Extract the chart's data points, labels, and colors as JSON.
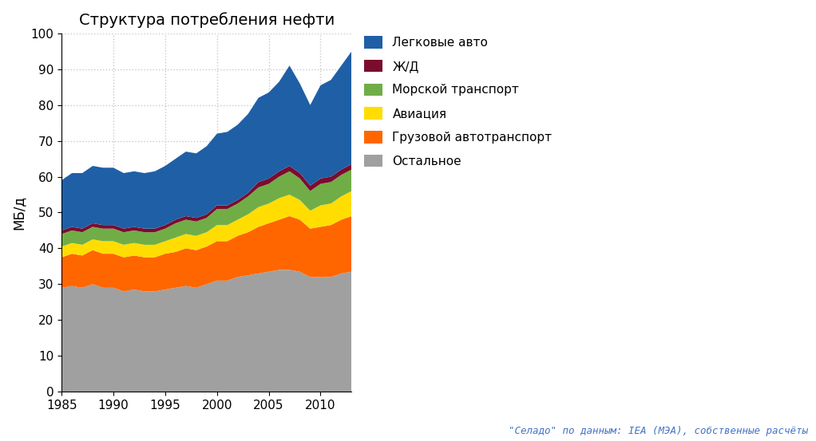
{
  "title": "Структура потребления нефти",
  "ylabel": "МБ/д",
  "source_text": "\"Селадо\" по данным: IEA (МЭА), собственные расчёты",
  "years": [
    1985,
    1986,
    1987,
    1988,
    1989,
    1990,
    1991,
    1992,
    1993,
    1994,
    1995,
    1996,
    1997,
    1998,
    1999,
    2000,
    2001,
    2002,
    2003,
    2004,
    2005,
    2006,
    2007,
    2008,
    2009,
    2010,
    2011,
    2012,
    2013
  ],
  "series": {
    "Остальное": [
      29,
      29.5,
      29,
      30,
      29,
      29,
      28,
      28.5,
      28,
      28,
      28.5,
      29,
      29.5,
      29,
      30,
      31,
      31,
      32,
      32.5,
      33,
      33.5,
      34,
      34,
      33.5,
      32,
      32,
      32,
      33,
      33.5
    ],
    "Грузовой автотранспорт": [
      8.5,
      9,
      9,
      9.5,
      9.5,
      9.5,
      9.5,
      9.5,
      9.5,
      9.5,
      10,
      10,
      10.5,
      10.5,
      10.5,
      11,
      11,
      11.5,
      12,
      13,
      13.5,
      14,
      15,
      14.5,
      13.5,
      14,
      14.5,
      15,
      15.5
    ],
    "Авиация": [
      3,
      3,
      3,
      3,
      3.5,
      3.5,
      3.5,
      3.5,
      3.5,
      3.5,
      3.5,
      4,
      4,
      4,
      4,
      4.5,
      4.5,
      4.5,
      5,
      5.5,
      5.5,
      6,
      6,
      5.5,
      5,
      6,
      6,
      6.5,
      7
    ],
    "Морской транспорт": [
      3.5,
      3.5,
      3.5,
      3.5,
      3.5,
      3.5,
      3.5,
      3.5,
      3.5,
      3.5,
      3.5,
      4,
      4,
      4,
      4,
      4.5,
      4.5,
      4.5,
      5,
      5.5,
      5.5,
      6,
      6.5,
      6,
      5.5,
      6,
      6,
      6,
      6
    ],
    "Ж/Д": [
      1,
      1,
      1,
      1,
      1,
      1,
      1,
      1,
      1,
      1,
      1,
      1,
      1,
      1,
      1,
      1,
      1,
      1,
      1,
      1.5,
      1.5,
      1.5,
      1.5,
      1.5,
      1.5,
      1.5,
      1.5,
      1.5,
      1.5
    ],
    "Легковые авто": [
      14,
      15,
      15.5,
      16,
      16,
      16,
      15.5,
      15.5,
      15.5,
      16,
      16.5,
      17,
      18,
      18,
      19,
      20,
      20.5,
      21,
      22,
      23.5,
      24,
      25,
      28,
      25,
      22.5,
      26,
      27,
      29,
      31.5
    ]
  },
  "colors": {
    "Остальное": "#a0a0a0",
    "Грузовой автотранспорт": "#ff6600",
    "Авиация": "#ffdd00",
    "Морской транспорт": "#70ad47",
    "Ж/Д": "#7b0c2e",
    "Легковые авто": "#1f5fa6"
  },
  "ylim": [
    0,
    100
  ],
  "yticks": [
    0,
    10,
    20,
    30,
    40,
    50,
    60,
    70,
    80,
    90,
    100
  ],
  "xlim": [
    1985,
    2013
  ],
  "xticks": [
    1985,
    1990,
    1995,
    2000,
    2005,
    2010
  ],
  "grid_color": "#c8c8c8",
  "bg_color": "#ffffff",
  "plot_bg_color": "#ffffff",
  "figsize": [
    10.22,
    5.53
  ],
  "dpi": 100
}
